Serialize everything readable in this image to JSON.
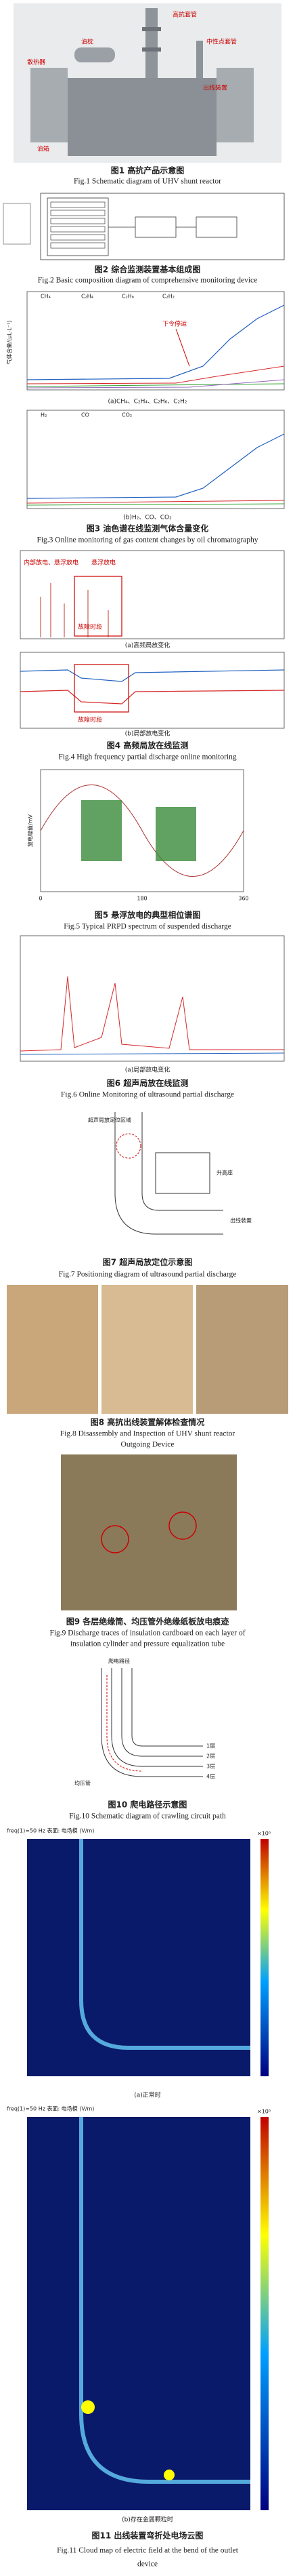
{
  "fig1": {
    "labels": [
      "高抗套管",
      "油枕",
      "中性点套管",
      "散热器",
      "出线装置",
      "油箱"
    ],
    "caption_cn": "图1  高抗产品示意图",
    "caption_en": "Fig.1  Schematic diagram of UHV shunt reactor"
  },
  "fig2": {
    "caption_cn": "图2  综合监测装置基本组成图",
    "caption_en": "Fig.2  Basic composition diagram of comprehensive monitoring device"
  },
  "fig3": {
    "legend_a": [
      "CH₄",
      "C₂H₄",
      "C₂H₆",
      "C₂H₂"
    ],
    "legend_b": [
      "H₂",
      "CO",
      "CO₂"
    ],
    "annotation": "下令停运",
    "ylabel": "气体含量/(μL·L⁻¹)",
    "sub_a": "(a)CH₄、C₂H₄、C₂H₆、C₂H₂",
    "sub_b": "(b)H₂、CO、CO₂",
    "caption_cn": "图3  油色谱在线监测气体含量变化",
    "caption_en": "Fig.3  Online monitoring of gas content changes by oil chromatography"
  },
  "fig4": {
    "annotations": [
      "内部放电、悬浮放电",
      "悬浮放电",
      "故障时段",
      "故障时段"
    ],
    "sub_a": "(a)高频局放变化",
    "sub_b": "(b)局部放电变化",
    "caption_cn": "图4  高频局放在线监测",
    "caption_en": "Fig.4  High frequency partial discharge online monitoring"
  },
  "fig5": {
    "ylabel": "放电幅值/mV",
    "xticks": [
      "0",
      "180",
      "360"
    ],
    "caption_cn": "图5  悬浮放电的典型相位谱图",
    "caption_en": "Fig.5  Typical PRPD spectrum of suspended discharge"
  },
  "fig6": {
    "sub_a": "(a)局部放电变化",
    "caption_cn": "图6  超声局放在线监测",
    "caption_en": "Fig.6  Online Monitoring of ultrasound partial discharge"
  },
  "fig7": {
    "labels": [
      "超声局放定位区域",
      "升高座",
      "出线装置"
    ],
    "caption_cn": "图7  超声局放定位示意图",
    "caption_en": "Fig.7  Positioning diagram of ultrasound partial discharge"
  },
  "fig8": {
    "caption_cn": "图8  高抗出线装置解体检查情况",
    "caption_en_1": "Fig.8  Disassembly and Inspection of UHV shunt reactor",
    "caption_en_2": "Outgoing Device"
  },
  "fig9": {
    "caption_cn": "图9  各层绝缘筒、均压管外绝缘纸板放电痕迹",
    "caption_en_1": "Fig.9  Discharge traces of insulation cardboard on each layer of",
    "caption_en_2": "insulation cylinder and pressure equalization tube"
  },
  "fig10": {
    "labels": [
      "爬电路径",
      "1层",
      "2层",
      "3层",
      "4层",
      "均压管"
    ],
    "caption_cn": "图10  爬电路径示意图",
    "caption_en": "Fig.10  Schematic diagram of crawling circuit path"
  },
  "fig11": {
    "plot_title": "freq(1)=50 Hz  表面: 电场模 (V/m)",
    "colorbar_unit": "×10⁶",
    "sub_a": "(a)正常时",
    "sub_b": "(b)存在金属颗粒时",
    "caption_cn": "图11  出线装置弯折处电场云图",
    "caption_en_1": "Fig.11  Cloud map of electric field at the bend of the outlet",
    "caption_en_2": "device"
  }
}
